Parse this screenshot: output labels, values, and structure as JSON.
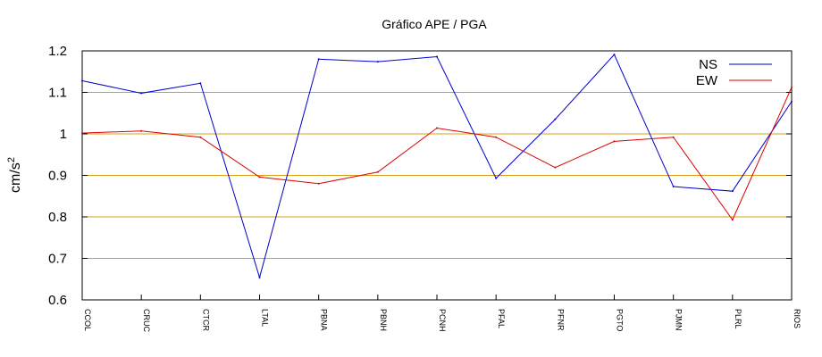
{
  "chart_data": {
    "type": "line",
    "title": "Gráfico  APE / PGA",
    "ylabel_base": "cm/s",
    "ylabel_exp": "2",
    "xlabel": "",
    "ylim": [
      0.6,
      1.2
    ],
    "yticks": [
      "0.6",
      "0.7",
      "0.8",
      "0.9",
      "1",
      "1.1",
      "1.2"
    ],
    "grid": "horizontal",
    "grid_color": "#d4a017",
    "legend_position": "top-right",
    "categories": [
      "CCOL",
      "CRUC",
      "CTCR",
      "LTAL",
      "PBNA",
      "PBNH",
      "PCNH",
      "PFAL",
      "PFNR",
      "PGTO",
      "PJMN",
      "PLRL",
      "RIOS"
    ],
    "series": [
      {
        "name": "NS",
        "color": "#0000cc",
        "values": [
          1.128,
          1.098,
          1.122,
          0.654,
          1.18,
          1.174,
          1.186,
          0.893,
          1.035,
          1.191,
          0.873,
          0.862,
          1.078
        ]
      },
      {
        "name": "EW",
        "color": "#dd0000",
        "values": [
          1.002,
          1.007,
          0.992,
          0.896,
          0.88,
          0.908,
          1.014,
          0.992,
          0.919,
          0.982,
          0.992,
          0.793,
          1.112
        ]
      }
    ]
  }
}
